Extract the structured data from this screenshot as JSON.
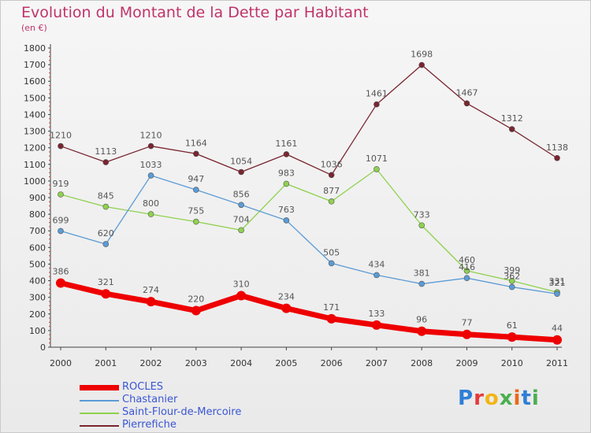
{
  "title": "Evolution du Montant de la Dette par Habitant",
  "unit": "(en €)",
  "logo": {
    "text": "Proxiti",
    "colors": [
      "#2f7fd6",
      "#e63a3a",
      "#f2b515",
      "#4caf50",
      "#e86a1a",
      "#2f7fd6",
      "#4caf50"
    ]
  },
  "chart_data": {
    "type": "line",
    "x": [
      "2000",
      "2001",
      "2002",
      "2003",
      "2004",
      "2005",
      "2006",
      "2007",
      "2008",
      "2009",
      "2010",
      "2011"
    ],
    "ylim": [
      0,
      1800
    ],
    "yticks": [
      0,
      100,
      200,
      300,
      400,
      500,
      600,
      700,
      800,
      900,
      1000,
      1100,
      1200,
      1300,
      1400,
      1500,
      1600,
      1700,
      1800
    ],
    "grid": false,
    "legend_position": "bottom-left",
    "series": [
      {
        "name": "ROCLES",
        "color": "#ee0000",
        "values": [
          386,
          321,
          274,
          220,
          310,
          234,
          171,
          133,
          96,
          77,
          61,
          44
        ]
      },
      {
        "name": "Chastanier",
        "color": "#5b9bd5",
        "values": [
          699,
          620,
          1033,
          947,
          856,
          763,
          505,
          434,
          381,
          416,
          362,
          321
        ]
      },
      {
        "name": "Saint-Flour-de-Mercoire",
        "color": "#8fd14f",
        "values": [
          919,
          845,
          800,
          755,
          704,
          983,
          877,
          1071,
          733,
          460,
          399,
          331
        ]
      },
      {
        "name": "Pierrefiche",
        "color": "#7a2530",
        "values": [
          1210,
          1113,
          1210,
          1164,
          1054,
          1161,
          1036,
          1461,
          1698,
          1467,
          1312,
          1138
        ]
      }
    ]
  }
}
